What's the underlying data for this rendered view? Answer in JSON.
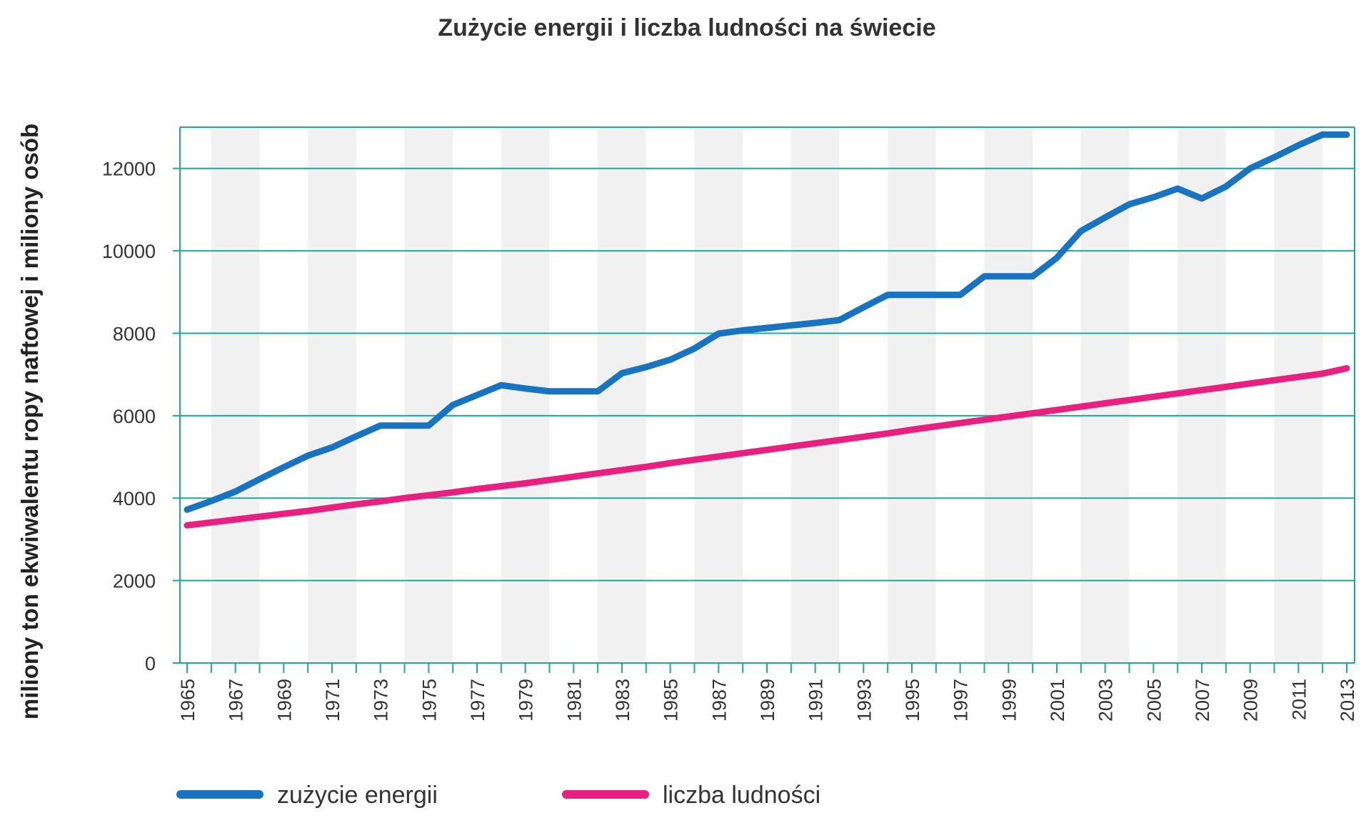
{
  "chart_data": {
    "type": "line",
    "title": "Zużycie energii i liczba ludności na świecie",
    "xlabel": "",
    "ylabel": "miliony ton ekwiwalentu ropy naftowej i miliony osób",
    "xlim": [
      1965,
      2013
    ],
    "ylim": [
      0,
      13000
    ],
    "yticks": [
      0,
      2000,
      4000,
      6000,
      8000,
      10000,
      12000
    ],
    "xtick_labels": [
      "1965",
      "1967",
      "1969",
      "1971",
      "1973",
      "1975",
      "1977",
      "1979",
      "1981",
      "1983",
      "1985",
      "1987",
      "1989",
      "1991",
      "1993",
      "1995",
      "1997",
      "1999",
      "2001",
      "2003",
      "2005",
      "2007",
      "2009",
      "2011",
      "2013"
    ],
    "grid": true,
    "legend_position": "bottom",
    "x": [
      1965,
      1966,
      1967,
      1968,
      1969,
      1970,
      1971,
      1972,
      1973,
      1974,
      1975,
      1976,
      1977,
      1978,
      1979,
      1980,
      1981,
      1982,
      1983,
      1984,
      1985,
      1986,
      1987,
      1988,
      1989,
      1990,
      1991,
      1992,
      1993,
      1994,
      1995,
      1996,
      1997,
      1998,
      1999,
      2000,
      2001,
      2002,
      2003,
      2004,
      2005,
      2006,
      2007,
      2008,
      2009,
      2010,
      2011,
      2012,
      2013
    ],
    "series": [
      {
        "name": "zużycie energii",
        "color": "#1874c1",
        "values": [
          3720,
          3930,
          4160,
          4460,
          4750,
          5030,
          5230,
          5500,
          5760,
          5760,
          5760,
          6260,
          6500,
          6740,
          6660,
          6590,
          6590,
          6590,
          7030,
          7180,
          7360,
          7630,
          7990,
          8070,
          8130,
          8190,
          8250,
          8320,
          8630,
          8930,
          8930,
          8930,
          8930,
          9380,
          9380,
          9380,
          9830,
          10480,
          10810,
          11130,
          11300,
          11510,
          11270,
          11560,
          12000,
          12270,
          12560,
          12820,
          12820
        ]
      },
      {
        "name": "liczba ludności",
        "color": "#e8207f",
        "values": [
          3340,
          3410,
          3480,
          3550,
          3620,
          3690,
          3770,
          3850,
          3920,
          4000,
          4070,
          4140,
          4220,
          4290,
          4360,
          4440,
          4520,
          4600,
          4680,
          4760,
          4850,
          4930,
          5010,
          5090,
          5170,
          5250,
          5330,
          5410,
          5490,
          5570,
          5660,
          5740,
          5820,
          5900,
          5980,
          6060,
          6140,
          6220,
          6300,
          6380,
          6460,
          6540,
          6620,
          6700,
          6780,
          6860,
          6940,
          7020,
          7150
        ]
      }
    ]
  }
}
